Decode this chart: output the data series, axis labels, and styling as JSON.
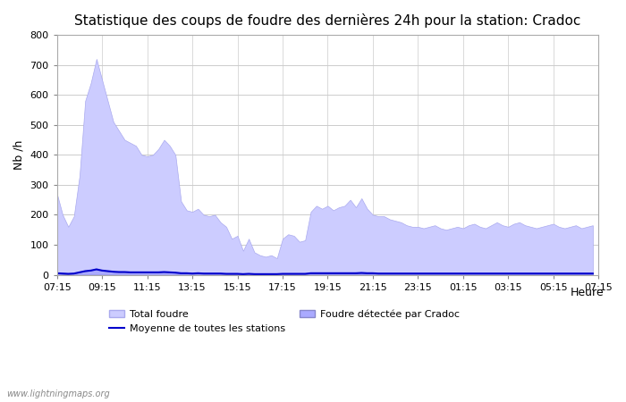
{
  "title": "Statistique des coups de foudre des dernières 24h pour la station: Cradoc",
  "xlabel": "Heure",
  "ylabel": "Nb /h",
  "xlim_labels": [
    "07:15",
    "09:15",
    "11:15",
    "13:15",
    "15:15",
    "17:15",
    "19:15",
    "21:15",
    "23:15",
    "01:15",
    "03:15",
    "05:15",
    "07:15"
  ],
  "ylim": [
    0,
    800
  ],
  "yticks": [
    0,
    100,
    200,
    300,
    400,
    500,
    600,
    700,
    800
  ],
  "background_color": "#ffffff",
  "plot_bg_color": "#ffffff",
  "watermark": "www.lightningmaps.org",
  "total_foudre_color": "#ccccff",
  "total_foudre_edge": "#aaaaee",
  "cradoc_color": "#aaaaff",
  "cradoc_edge": "#8888cc",
  "moyenne_color": "#0000cc",
  "total_foudre": [
    270,
    200,
    160,
    195,
    330,
    580,
    640,
    720,
    650,
    580,
    510,
    480,
    450,
    440,
    430,
    400,
    395,
    400,
    420,
    450,
    430,
    400,
    245,
    215,
    210,
    220,
    200,
    195,
    200,
    175,
    160,
    120,
    130,
    80,
    120,
    75,
    65,
    60,
    65,
    55,
    120,
    135,
    130,
    110,
    115,
    210,
    230,
    220,
    230,
    215,
    225,
    230,
    250,
    225,
    255,
    220,
    200,
    195,
    195,
    185,
    180,
    175,
    165,
    160,
    160,
    155,
    160,
    165,
    155,
    150,
    155,
    160,
    155,
    165,
    170,
    160,
    155,
    165,
    175,
    165,
    160,
    170,
    175,
    165,
    160,
    155,
    160,
    165,
    170,
    160,
    155,
    160,
    165,
    155,
    160,
    165
  ],
  "cradoc_detected": [
    5,
    3,
    2,
    4,
    8,
    12,
    15,
    18,
    14,
    12,
    10,
    9,
    9,
    8,
    9,
    8,
    8,
    9,
    8,
    9,
    8,
    7,
    5,
    5,
    4,
    5,
    4,
    4,
    4,
    4,
    3,
    3,
    3,
    2,
    3,
    2,
    2,
    2,
    2,
    2,
    3,
    3,
    3,
    3,
    3,
    5,
    5,
    5,
    5,
    5,
    5,
    5,
    6,
    5,
    6,
    5,
    5,
    4,
    4,
    4,
    4,
    4,
    4,
    4,
    4,
    4,
    4,
    4,
    4,
    4,
    4,
    4,
    4,
    4,
    4,
    4,
    4,
    4,
    4,
    4,
    4,
    4,
    4,
    4,
    4,
    4,
    4,
    4,
    4,
    4,
    4,
    4,
    4,
    4,
    4,
    4
  ],
  "moyenne": [
    5,
    4,
    3,
    4,
    8,
    12,
    14,
    18,
    14,
    12,
    10,
    9,
    9,
    8,
    8,
    8,
    8,
    8,
    8,
    9,
    8,
    7,
    5,
    5,
    4,
    5,
    4,
    4,
    4,
    4,
    3,
    3,
    3,
    2,
    3,
    2,
    2,
    2,
    2,
    2,
    3,
    3,
    3,
    3,
    3,
    5,
    5,
    5,
    5,
    5,
    5,
    5,
    5,
    5,
    6,
    5,
    5,
    4,
    4,
    4,
    4,
    4,
    4,
    4,
    4,
    4,
    4,
    4,
    4,
    4,
    4,
    4,
    4,
    4,
    4,
    4,
    4,
    4,
    4,
    4,
    4,
    4,
    4,
    4,
    4,
    4,
    4,
    4,
    4,
    4,
    4,
    4,
    4,
    4,
    4,
    4
  ]
}
